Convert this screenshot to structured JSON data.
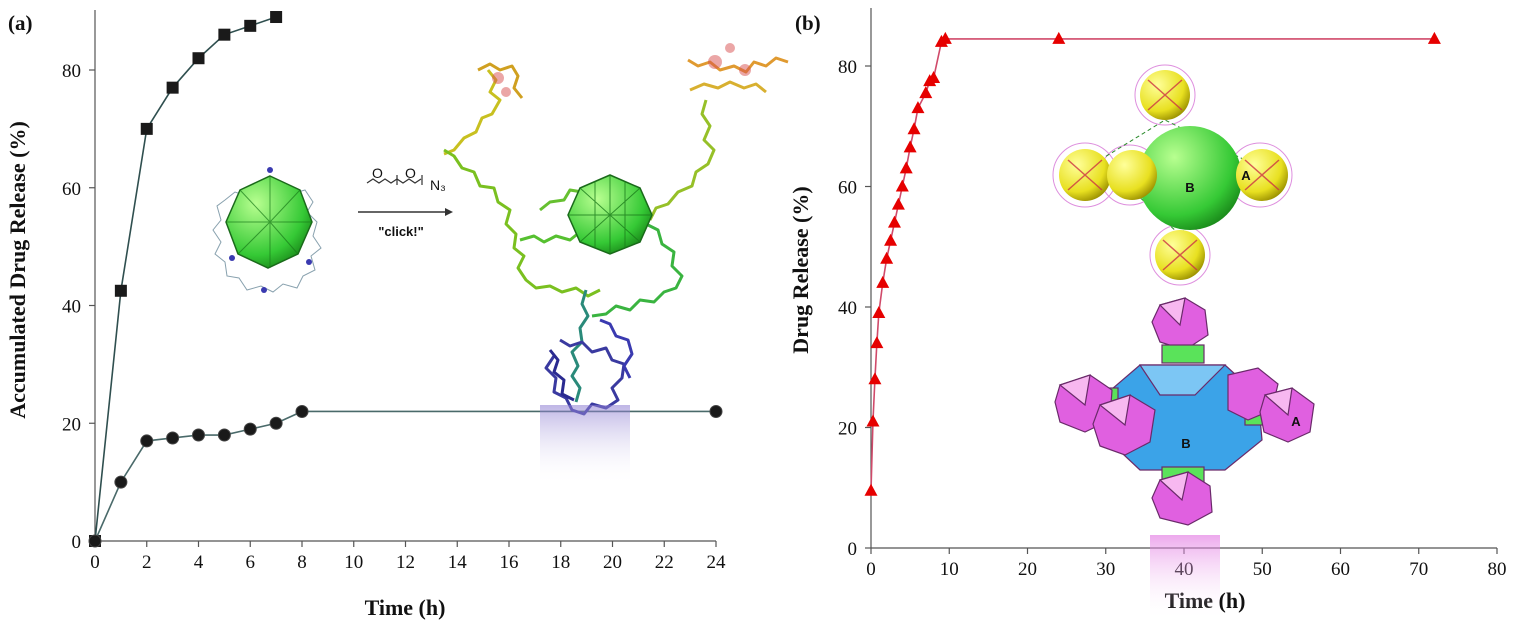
{
  "chart_data": [
    {
      "type": "line",
      "panel_label": "(a)",
      "xlabel": "Time (h)",
      "ylabel": "Accumulated Drug Release (%)",
      "xticks": [
        0,
        2,
        4,
        6,
        8,
        10,
        12,
        14,
        16,
        18,
        20,
        22,
        24
      ],
      "yticks": [
        0,
        20,
        40,
        60,
        80
      ],
      "xlim": [
        0,
        24
      ],
      "ylim": [
        0,
        90
      ],
      "grid": false,
      "legend": "none",
      "series": [
        {
          "marker": "square",
          "color": "#1a1a1a",
          "line_color": "#2f4f4f",
          "x": [
            0,
            1,
            2,
            3,
            4,
            5,
            6,
            7
          ],
          "y": [
            0,
            42.5,
            70,
            77,
            82,
            86,
            87.5,
            89
          ]
        },
        {
          "marker": "circle",
          "color": "#1a1a1a",
          "line_color": "#4a6a6a",
          "x": [
            0,
            1,
            2,
            3,
            4,
            5,
            6,
            7,
            8,
            24
          ],
          "y": [
            0,
            10,
            17,
            17.5,
            18,
            18,
            19,
            20,
            22,
            22
          ]
        }
      ],
      "inset": {
        "arrow_label": "\"click!\""
      }
    },
    {
      "type": "line",
      "panel_label": "(b)",
      "xlabel": "Time (h)",
      "ylabel": "Drug Release (%)",
      "xticks": [
        0,
        10,
        20,
        30,
        40,
        50,
        60,
        70,
        80
      ],
      "yticks": [
        0,
        20,
        40,
        60,
        80
      ],
      "xlim": [
        0,
        80
      ],
      "ylim": [
        0,
        90
      ],
      "grid": false,
      "legend": "none",
      "series": [
        {
          "marker": "triangle",
          "color": "#e60000",
          "line_color": "#d04a6a",
          "x": [
            0,
            0.25,
            0.5,
            0.75,
            1,
            1.5,
            2,
            2.5,
            3,
            3.5,
            4,
            4.5,
            5,
            5.5,
            6,
            7,
            7.5,
            8,
            9,
            9.5,
            24,
            72
          ],
          "y": [
            9.5,
            21,
            28,
            34,
            39,
            44,
            48,
            51,
            54,
            57,
            60,
            63,
            66.5,
            69.5,
            73,
            75.5,
            77.5,
            78,
            84,
            84.5,
            84.5,
            84.5
          ]
        }
      ],
      "inset": {
        "label_a": "A",
        "label_b": "B"
      }
    }
  ]
}
